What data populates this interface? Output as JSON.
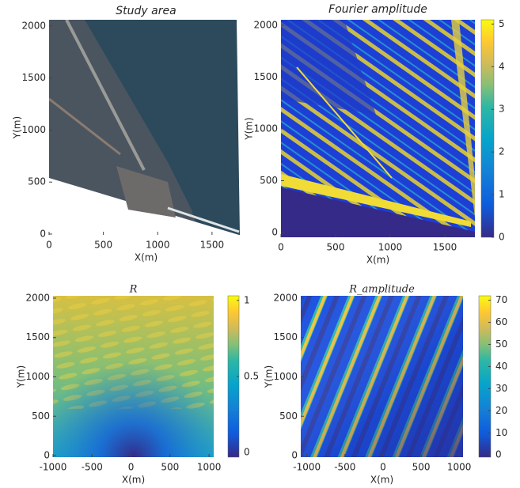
{
  "chart_data": [
    {
      "type": "image",
      "title": "Study area",
      "xlabel": "X(m)",
      "ylabel": "Y(m)",
      "xlim": [
        0,
        1785
      ],
      "ylim": [
        -8,
        2060
      ],
      "xticks": [
        0,
        500,
        1000,
        1500
      ],
      "yticks": [
        0,
        500,
        1000,
        1500,
        2000
      ]
    },
    {
      "type": "image",
      "title": "Fourier amplitude",
      "xlabel": "X(m)",
      "ylabel": "Y(m)",
      "xlim": [
        0,
        1775
      ],
      "ylim": [
        -46,
        2053
      ],
      "xticks": [
        0,
        500,
        1000,
        1500
      ],
      "yticks": [
        0,
        500,
        1000,
        1500,
        2000
      ],
      "colorbar": {
        "lim": [
          0,
          5.1
        ],
        "ticks": [
          0,
          1,
          2,
          3,
          4,
          5
        ]
      }
    },
    {
      "type": "image",
      "title": "R",
      "xlabel": "X(m)",
      "ylabel": "Y(m)",
      "xlim": [
        -1000,
        1060
      ],
      "ylim": [
        -20,
        2030
      ],
      "xticks": [
        -1000,
        -500,
        0,
        500,
        1000
      ],
      "yticks": [
        0,
        500,
        1000,
        1500,
        2000
      ],
      "colorbar": {
        "lim": [
          -0.03,
          1.03
        ],
        "ticks": [
          0,
          0.5,
          1
        ]
      }
    },
    {
      "type": "image",
      "title": "R_amplitude",
      "xlabel": "X(m)",
      "ylabel": "Y(m)",
      "xlim": [
        -1080,
        1050
      ],
      "ylim": [
        -20,
        2030
      ],
      "xticks": [
        -1000,
        -500,
        0,
        500,
        1000
      ],
      "yticks": [
        0,
        500,
        1000,
        1500,
        2000
      ],
      "colorbar": {
        "lim": [
          -1,
          72
        ],
        "ticks": [
          0,
          10,
          20,
          30,
          40,
          50,
          60,
          70
        ]
      }
    }
  ]
}
